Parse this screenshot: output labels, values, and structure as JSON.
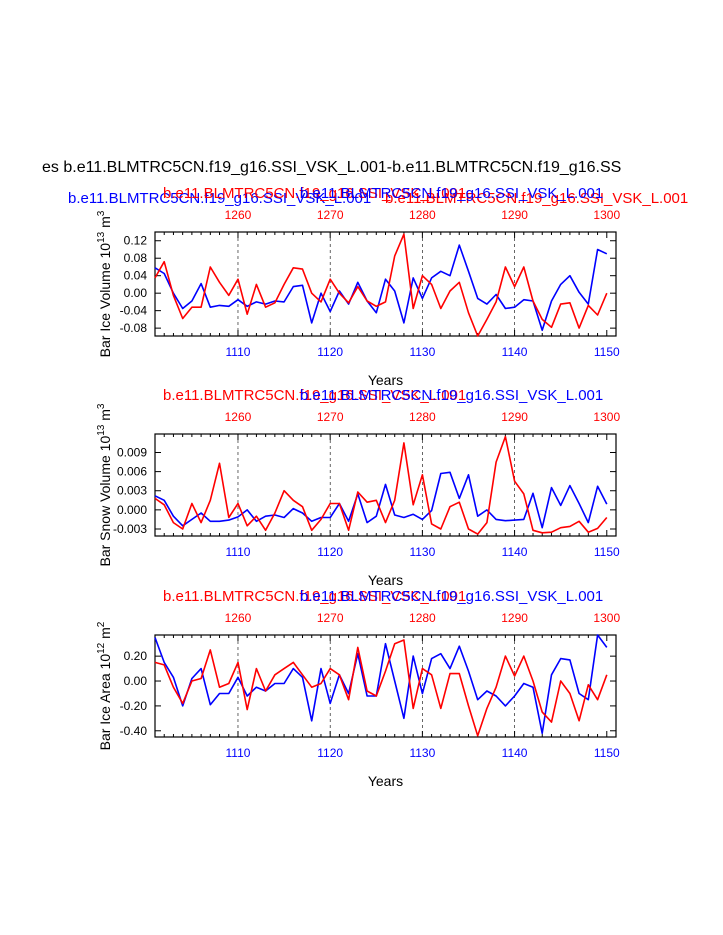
{
  "page": {
    "main_title": "es b.e11.BLMTRC5CN.f19_g16.SSI_VSK_L.001-b.e11.BLMTRC5CN.f19_g16.SS",
    "top_blue_title": "b.e11.BLMTRC5CN.f19_g16.SSI_VSK_L.001",
    "top_red_title": "b.e11.BLMTRC5CN.f19_g16.SSI_VSK_L.001"
  },
  "chart_data": [
    {
      "type": "line",
      "ylabel": "Bar Ice Volume 10^13 m^3",
      "ylabel_base": "Bar Ice Volume 10",
      "ylabel_exp": "13",
      "ylabel_unit": "m",
      "ylabel_unit_exp": "3",
      "xlabel": "Years",
      "title_red": "b.e11.BLMTRC5CN.f19_g16.SSI_VSK_L.001",
      "title_blue": "b.e11.BLMTRC5CN.f19_g16.SSI_VSK_L.001",
      "ylim": [
        -0.098,
        0.14
      ],
      "yticks": [
        -0.08,
        -0.04,
        0.0,
        0.04,
        0.08,
        0.12
      ],
      "ytick_labels": [
        "-0.08",
        "-0.04",
        "0.00",
        "0.04",
        "0.08",
        "0.12"
      ],
      "x_bottom": {
        "range": [
          1101,
          1151
        ],
        "ticks": [
          1110,
          1120,
          1130,
          1140,
          1150
        ],
        "color": "#0000ff"
      },
      "x_top": {
        "range": [
          1251,
          1301
        ],
        "ticks": [
          1260,
          1270,
          1280,
          1290,
          1300
        ],
        "color": "#ff0000"
      },
      "grid_x": [
        1110,
        1120,
        1130,
        1140
      ],
      "series": [
        {
          "name": "b.e11.BLMTRC5CN.f19_g16.SSI_VSK_L.001 (blue)",
          "color": "#0000ff",
          "axis": "bottom",
          "x_start": 1101,
          "values": [
            0.058,
            0.045,
            0.0,
            -0.035,
            -0.018,
            0.022,
            -0.032,
            -0.028,
            -0.03,
            -0.015,
            -0.03,
            -0.02,
            -0.025,
            -0.018,
            -0.02,
            0.015,
            0.018,
            -0.068,
            0.0,
            -0.042,
            0.005,
            -0.025,
            0.025,
            -0.018,
            -0.045,
            0.032,
            0.005,
            -0.068,
            0.035,
            -0.012,
            0.035,
            0.05,
            0.04,
            0.11,
            0.05,
            -0.012,
            -0.025,
            -0.003,
            -0.035,
            -0.032,
            -0.015,
            -0.018,
            -0.085,
            -0.018,
            0.02,
            0.04,
            0.002,
            -0.025,
            0.1,
            0.09
          ]
        },
        {
          "name": "b.e11.BLMTRC5CN.f19_g16.SSI_VSK_L.001 (red)",
          "color": "#ff0000",
          "axis": "top",
          "x_start": 1251,
          "values": [
            0.035,
            0.072,
            -0.005,
            -0.058,
            -0.032,
            -0.032,
            0.06,
            0.025,
            -0.005,
            0.032,
            -0.048,
            0.02,
            -0.032,
            -0.022,
            0.02,
            0.058,
            0.055,
            0.0,
            -0.02,
            0.032,
            0.0,
            -0.022,
            0.015,
            -0.018,
            -0.03,
            -0.02,
            0.085,
            0.135,
            -0.035,
            0.04,
            0.02,
            -0.035,
            0.005,
            0.025,
            -0.045,
            -0.098,
            -0.06,
            -0.02,
            0.06,
            0.015,
            0.06,
            -0.018,
            -0.06,
            -0.078,
            -0.025,
            -0.022,
            -0.08,
            -0.028,
            -0.05,
            0.0
          ]
        }
      ]
    },
    {
      "type": "line",
      "ylabel": "Bar Snow Volume 10^13 m^3",
      "ylabel_base": "Bar Snow Volume 10",
      "ylabel_exp": "13",
      "ylabel_unit": "m",
      "ylabel_unit_exp": "3",
      "xlabel": "Years",
      "title_red": "b.e11.BLMTRC5CN.f19_g16.SSI_VSK_L.001",
      "title_blue": "b.e11.BLMTRC5CN.f19_g16.SSI_VSK_L.001",
      "ylim": [
        -0.0041,
        0.0119
      ],
      "yticks": [
        -0.003,
        0.0,
        0.003,
        0.006,
        0.009
      ],
      "ytick_labels": [
        "-0.003",
        "0.000",
        "0.003",
        "0.006",
        "0.009"
      ],
      "x_bottom": {
        "range": [
          1101,
          1151
        ],
        "ticks": [
          1110,
          1120,
          1130,
          1140,
          1150
        ],
        "color": "#0000ff"
      },
      "x_top": {
        "range": [
          1251,
          1301
        ],
        "ticks": [
          1260,
          1270,
          1280,
          1290,
          1300
        ],
        "color": "#ff0000"
      },
      "grid_x": [
        1110,
        1120,
        1130,
        1140
      ],
      "series": [
        {
          "name": "b.e11.BLMTRC5CN.f19_g16.SSI_VSK_L.001 (blue)",
          "color": "#0000ff",
          "axis": "bottom",
          "x_start": 1101,
          "values": [
            0.0022,
            0.0015,
            -0.001,
            -0.0025,
            -0.0015,
            -0.0005,
            -0.0018,
            -0.0018,
            -0.0016,
            -0.0011,
            0.0,
            -0.0018,
            -0.001,
            -0.0008,
            -0.0012,
            0.0002,
            -0.0005,
            -0.0018,
            -0.0012,
            -0.0012,
            0.001,
            -0.0018,
            0.0025,
            -0.002,
            -0.001,
            0.004,
            -0.0008,
            -0.0012,
            -0.0007,
            -0.0015,
            -0.0001,
            0.0057,
            0.0059,
            0.0018,
            0.0055,
            -0.001,
            0.0,
            -0.0015,
            -0.0017,
            -0.0016,
            -0.0015,
            0.0026,
            -0.0028,
            0.0035,
            0.0007,
            0.0038,
            0.001,
            -0.002,
            0.0037,
            0.0009
          ]
        },
        {
          "name": "b.e11.BLMTRC5CN.f19_g16.SSI_VSK_L.001 (red)",
          "color": "#ff0000",
          "axis": "top",
          "x_start": 1251,
          "values": [
            0.0018,
            0.0008,
            -0.002,
            -0.003,
            0.001,
            -0.002,
            0.0015,
            0.0073,
            -0.0012,
            0.001,
            -0.0025,
            -0.001,
            -0.0032,
            -0.0005,
            0.003,
            0.0015,
            0.0005,
            -0.0032,
            -0.0015,
            0.001,
            0.001,
            -0.0032,
            0.0028,
            0.0012,
            0.0015,
            -0.002,
            0.0015,
            0.0105,
            0.0008,
            0.0055,
            -0.0022,
            -0.003,
            0.0005,
            0.0012,
            -0.003,
            -0.0038,
            -0.002,
            0.0075,
            0.0115,
            0.0045,
            0.0025,
            -0.0032,
            -0.0036,
            -0.0035,
            -0.0028,
            -0.0026,
            -0.0018,
            -0.0035,
            -0.0029,
            -0.0012
          ]
        }
      ]
    },
    {
      "type": "line",
      "ylabel": "Bar Ice Area 10^12 m^2",
      "ylabel_base": "Bar Ice Area 10",
      "ylabel_exp": "12",
      "ylabel_unit": "m",
      "ylabel_unit_exp": "2",
      "xlabel": "Years",
      "title_red": "b.e11.BLMTRC5CN.f19_g16.SSI_VSK_L.001",
      "title_blue": "b.e11.BLMTRC5CN.f19_g16.SSI_VSK_L.001",
      "ylim": [
        -0.45,
        0.37
      ],
      "yticks": [
        -0.4,
        -0.2,
        0.0,
        0.2
      ],
      "ytick_labels": [
        "-0.40",
        "-0.20",
        "0.00",
        "0.20"
      ],
      "x_bottom": {
        "range": [
          1101,
          1151
        ],
        "ticks": [
          1110,
          1120,
          1130,
          1140,
          1150
        ],
        "color": "#0000ff"
      },
      "x_top": {
        "range": [
          1251,
          1301
        ],
        "ticks": [
          1260,
          1270,
          1280,
          1290,
          1300
        ],
        "color": "#ff0000"
      },
      "grid_x": [
        1110,
        1120,
        1130,
        1140
      ],
      "series": [
        {
          "name": "b.e11.BLMTRC5CN.f19_g16.SSI_VSK_L.001 (blue)",
          "color": "#0000ff",
          "axis": "bottom",
          "x_start": 1101,
          "values": [
            0.35,
            0.15,
            0.03,
            -0.2,
            0.02,
            0.1,
            -0.19,
            -0.1,
            -0.1,
            0.03,
            -0.12,
            -0.05,
            -0.08,
            -0.02,
            -0.02,
            0.1,
            0.03,
            -0.32,
            0.1,
            -0.18,
            0.05,
            -0.1,
            0.22,
            -0.12,
            -0.12,
            0.3,
            0.0,
            -0.3,
            0.2,
            -0.1,
            0.18,
            0.22,
            0.1,
            0.28,
            0.08,
            -0.15,
            -0.08,
            -0.12,
            -0.2,
            -0.12,
            -0.02,
            -0.05,
            -0.42,
            0.05,
            0.18,
            0.17,
            -0.1,
            -0.15,
            0.38,
            0.27
          ]
        },
        {
          "name": "b.e11.BLMTRC5CN.f19_g16.SSI_VSK_L.001 (red)",
          "color": "#ff0000",
          "axis": "top",
          "x_start": 1251,
          "values": [
            0.15,
            0.13,
            -0.05,
            -0.18,
            0.0,
            0.02,
            0.25,
            -0.05,
            -0.02,
            0.15,
            -0.23,
            0.1,
            -0.08,
            0.05,
            0.1,
            0.15,
            0.05,
            -0.05,
            -0.02,
            0.1,
            0.05,
            -0.15,
            0.27,
            -0.08,
            -0.12,
            0.08,
            0.3,
            0.33,
            -0.22,
            0.1,
            0.05,
            -0.22,
            0.06,
            0.06,
            -0.2,
            -0.44,
            -0.22,
            -0.05,
            0.2,
            0.04,
            0.2,
            0.0,
            -0.25,
            -0.33,
            0.0,
            -0.1,
            -0.32,
            -0.03,
            -0.15,
            0.05
          ]
        }
      ]
    }
  ]
}
